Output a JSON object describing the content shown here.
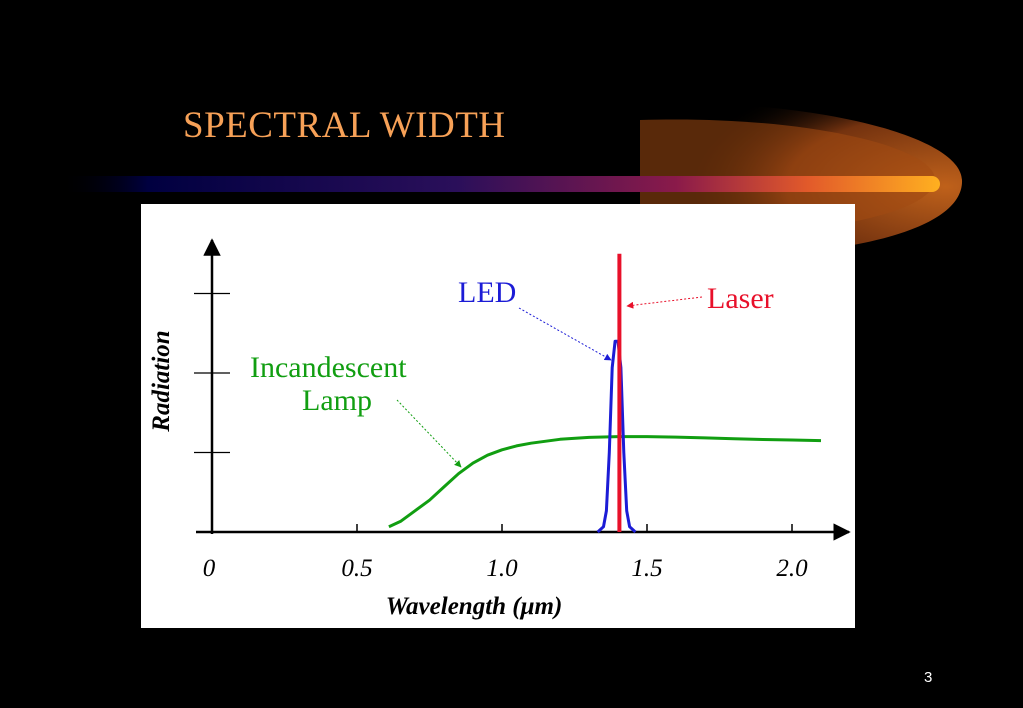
{
  "slide": {
    "title": "SPECTRAL WIDTH",
    "page_number": "3",
    "title_color": "#f7a157",
    "background": "#000000"
  },
  "chart_data": {
    "type": "line",
    "title": "",
    "xlabel": "Wavelength (μm)",
    "ylabel": "Radiation",
    "xlim": [
      0,
      2.2
    ],
    "ylim": [
      0,
      1.2
    ],
    "x_ticks": [
      "0",
      "0.5",
      "1.0",
      "1.5",
      "2.0"
    ],
    "x_tick_values": [
      0,
      0.5,
      1.0,
      1.5,
      2.0
    ],
    "y_tick_values": [
      0.3,
      0.6,
      0.9
    ],
    "y_tick_labels": false,
    "grid": false,
    "series": [
      {
        "name": "Incandescent Lamp",
        "color": "#119e11",
        "x": [
          0.61,
          0.65,
          0.7,
          0.75,
          0.8,
          0.85,
          0.9,
          0.95,
          1.0,
          1.05,
          1.1,
          1.2,
          1.3,
          1.4,
          1.5,
          1.6,
          1.7,
          1.8,
          1.9,
          2.0,
          2.1
        ],
        "y": [
          0.02,
          0.04,
          0.08,
          0.12,
          0.17,
          0.22,
          0.26,
          0.29,
          0.31,
          0.325,
          0.335,
          0.35,
          0.357,
          0.36,
          0.36,
          0.358,
          0.355,
          0.352,
          0.349,
          0.347,
          0.345
        ]
      },
      {
        "name": "LED",
        "color": "#1c1cd6",
        "x": [
          1.33,
          1.35,
          1.36,
          1.37,
          1.38,
          1.39,
          1.4,
          1.41,
          1.42,
          1.43,
          1.44,
          1.46
        ],
        "y": [
          0.0,
          0.02,
          0.08,
          0.3,
          0.62,
          0.72,
          0.72,
          0.62,
          0.3,
          0.08,
          0.02,
          0.0
        ]
      },
      {
        "name": "Laser",
        "color": "#e8102a",
        "x": [
          1.405,
          1.405
        ],
        "y": [
          0.0,
          1.05
        ]
      }
    ],
    "annotations": [
      {
        "text": "Incandescent Lamp",
        "lines": [
          "Incandescent",
          "Lamp"
        ],
        "color": "#119e11",
        "points_to_series": "Incandescent Lamp"
      },
      {
        "text": "LED",
        "color": "#1c1cd6",
        "points_to_series": "LED"
      },
      {
        "text": "Laser",
        "color": "#e8102a",
        "points_to_series": "Laser"
      }
    ]
  }
}
